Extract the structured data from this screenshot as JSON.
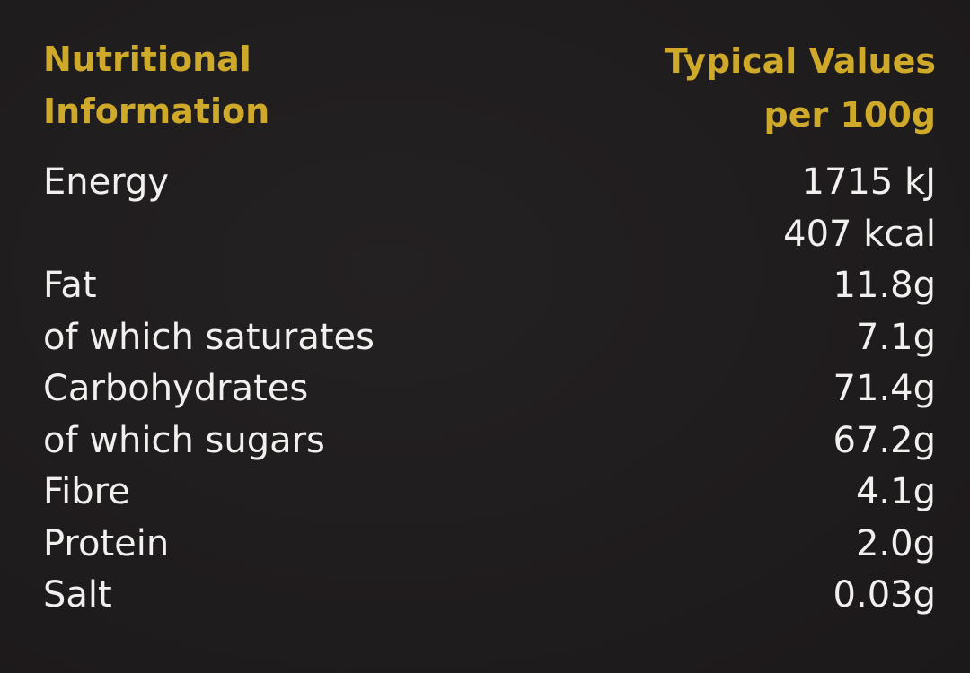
{
  "header": {
    "left": [
      "Nutritional",
      "Information"
    ],
    "right": [
      "Typical Values",
      "per 100g"
    ]
  },
  "table": {
    "rows": [
      {
        "label": "Energy",
        "values": [
          "1715 kJ",
          "407 kcal"
        ]
      },
      {
        "label": "Fat",
        "values": [
          "11.8g"
        ]
      },
      {
        "label": "of which saturates",
        "values": [
          "7.1g"
        ]
      },
      {
        "label": "Carbohydrates",
        "values": [
          "71.4g"
        ]
      },
      {
        "label": "of which sugars",
        "values": [
          "67.2g"
        ]
      },
      {
        "label": "Fibre",
        "values": [
          "4.1g"
        ]
      },
      {
        "label": "Protein",
        "values": [
          "2.0g"
        ]
      },
      {
        "label": "Salt",
        "values": [
          "0.03g"
        ]
      }
    ]
  }
}
